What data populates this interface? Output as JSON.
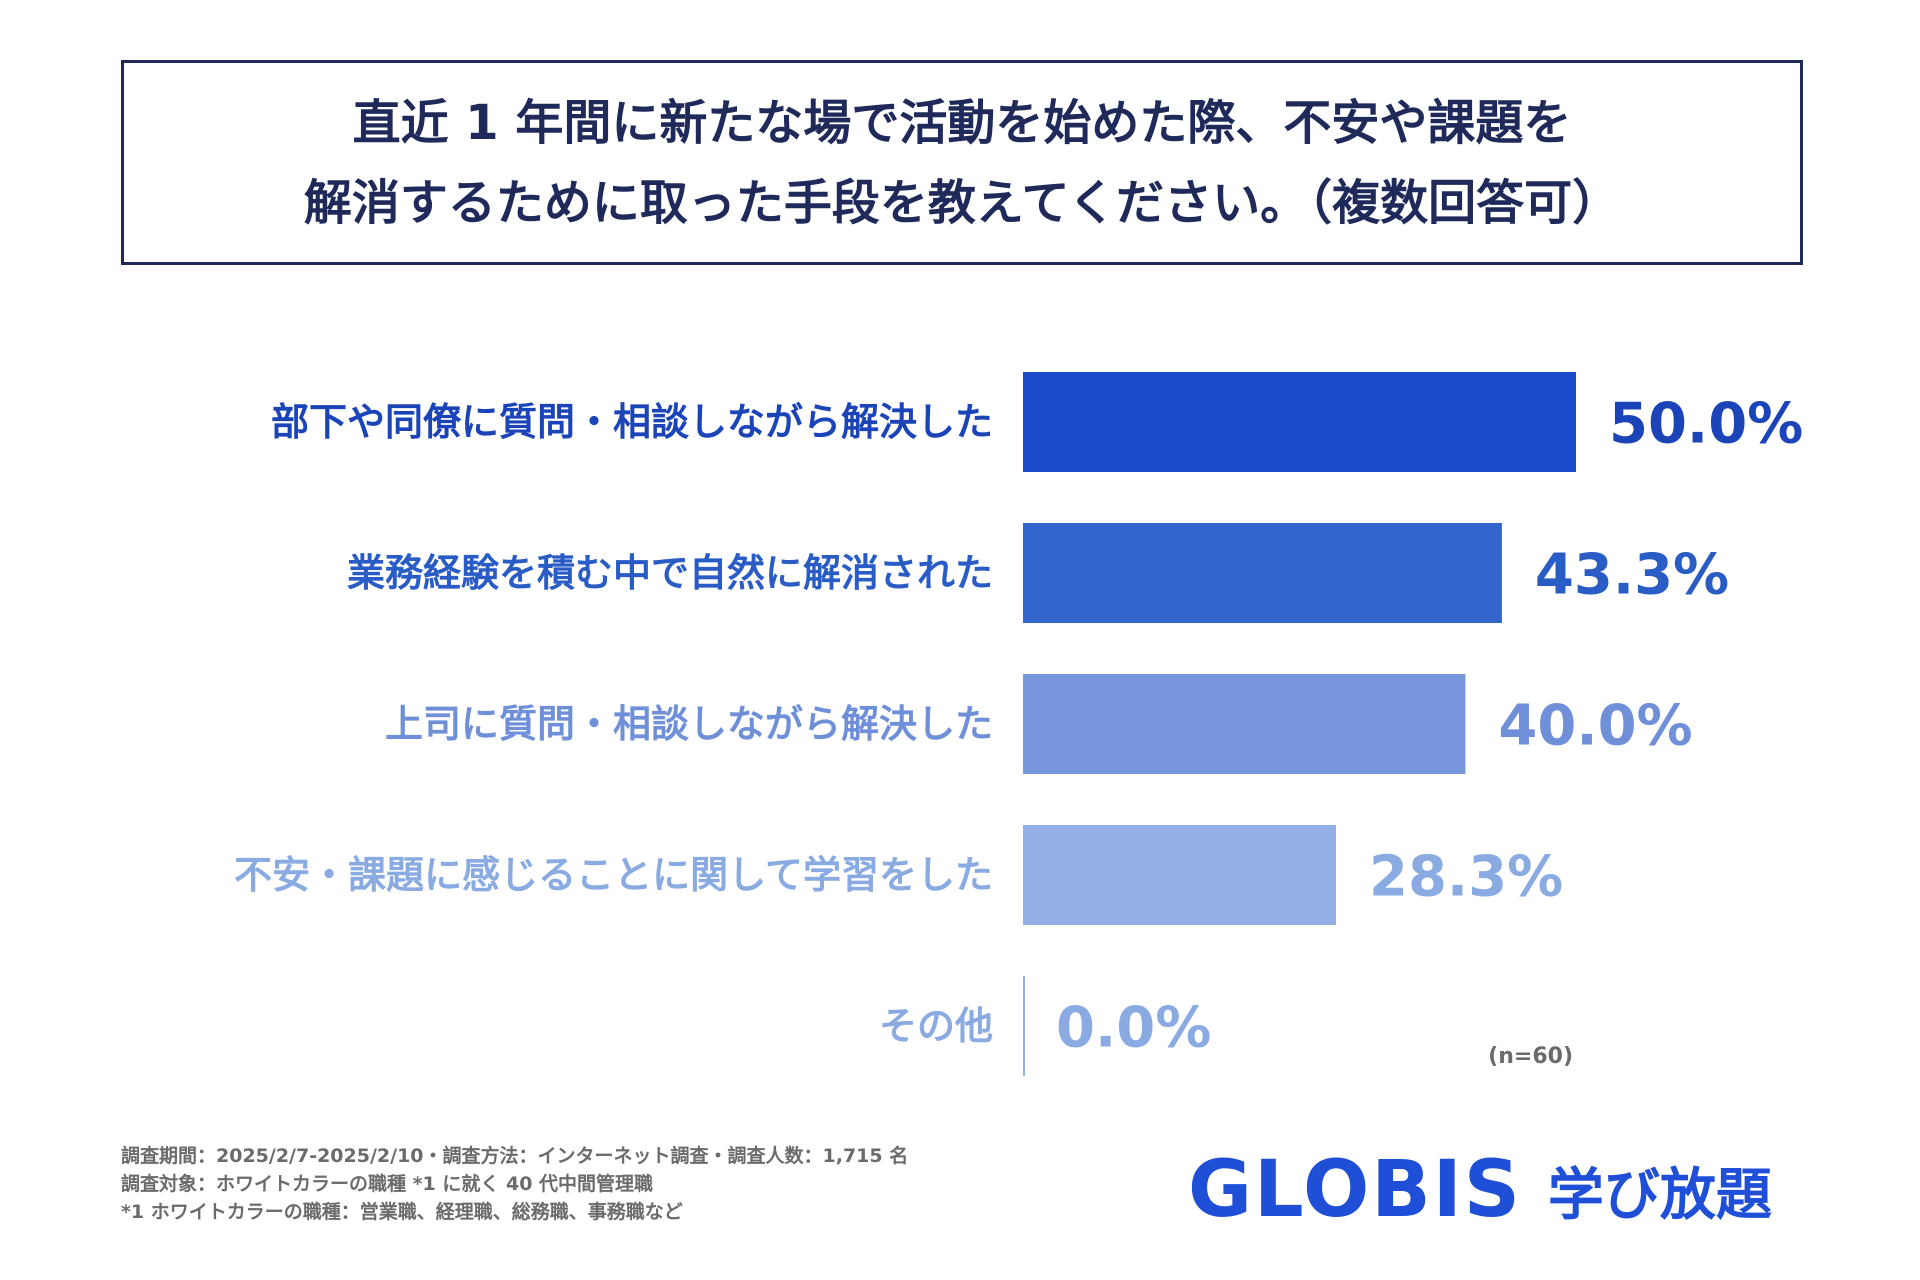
{
  "title": {
    "line1": "直近 1 年間に新たな場で活動を始めた際、不安や課題を",
    "line2": "解消するために取った手段を教えてください。（複数回答可）"
  },
  "chart_data": {
    "type": "bar",
    "orientation": "horizontal",
    "categories": [
      "部下や同僚に質問・相談しながら解決した",
      "業務経験を積む中で自然に解消された",
      "上司に質問・相談しながら解決した",
      "不安・課題に感じることに関して学習をした",
      "その他"
    ],
    "values": [
      50.0,
      43.3,
      40.0,
      28.3,
      0.0
    ],
    "value_labels": [
      "50.0%",
      "43.3%",
      "40.0%",
      "28.3%",
      "0.0%"
    ],
    "colors": [
      "#1a4ac8",
      "#3366cc",
      "#7896dc",
      "#92afe6",
      "#92afe6"
    ],
    "label_colors": [
      "#1a44b8",
      "#2a5cc6",
      "#6f90d8",
      "#8aaae2",
      "#8aaae2"
    ],
    "xlim": [
      0,
      100
    ],
    "note": "(n=60)"
  },
  "footnotes": [
    "調査期間：2025/2/7-2025/2/10・調査方法：インターネット調査・調査人数：1,715 名",
    "調査対象：ホワイトカラーの職種 *1 に就く 40 代中間管理職",
    "*1 ホワイトカラーの職種：営業職、経理職、総務職、事務職など"
  ],
  "logo": {
    "brand": "GLOBIS",
    "sub": "学び放題",
    "brand_color": "#1e4fd6",
    "accent_color": "#f39a1e"
  }
}
